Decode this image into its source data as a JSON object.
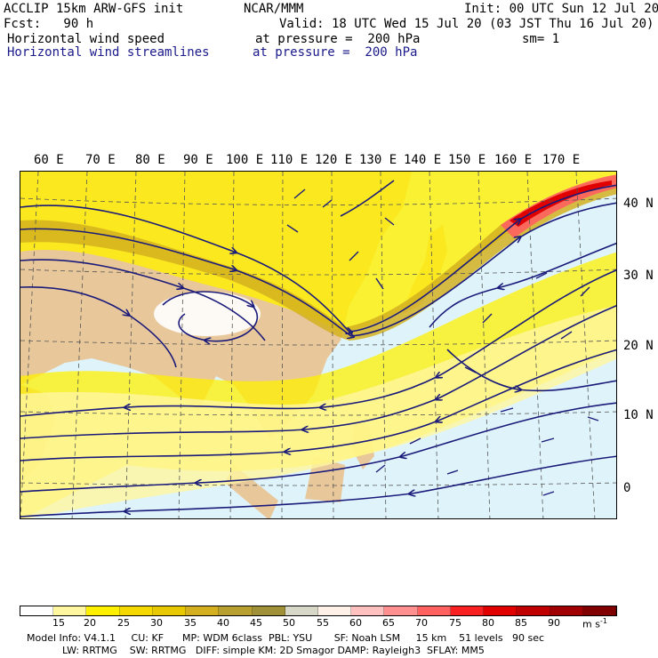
{
  "header": {
    "model": "ACCLIP 15km ARW-GFS init",
    "org": "NCAR/MMM",
    "init": "Init: 00 UTC Sun 12 Jul 20",
    "fcst": "Fcst:   90 h",
    "valid": "Valid: 18 UTC Wed 15 Jul 20 (03 JST Thu 16 Jul 20)",
    "field1": "Horizontal wind speed",
    "level1": "at pressure =  200 hPa",
    "sm": "sm= 1",
    "field2": "Horizontal wind streamlines",
    "level2": "at pressure =  200 hPa"
  },
  "map": {
    "lon_labels": [
      "60 E",
      "70 E",
      "80 E",
      "90 E",
      "100 E",
      "110 E",
      "120 E",
      "130 E",
      "140 E",
      "150 E",
      "160 E",
      "170 E"
    ],
    "lat_labels": [
      "40 N",
      "30 N",
      "20 N",
      "10 N",
      "0"
    ],
    "colors": {
      "ocean": "#dff4fa",
      "land": "#e8c79a",
      "streamline": "#1a1a7a",
      "gridline": "#555555"
    },
    "jet_core_max_ms": 70
  },
  "colorbar": {
    "labels": [
      "15",
      "20",
      "25",
      "30",
      "35",
      "40",
      "45",
      "50",
      "55",
      "60",
      "65",
      "70",
      "75",
      "80",
      "85",
      "90"
    ],
    "units": "m s",
    "units_exp": "-1",
    "colors": [
      "#ffffff",
      "#fff6a0",
      "#fff000",
      "#f5d800",
      "#e8c800",
      "#d4b020",
      "#b8a030",
      "#a09038",
      "#d8d8c8",
      "#fff0e8",
      "#ffc0c0",
      "#ff9090",
      "#ff6060",
      "#f82020",
      "#e00000",
      "#c00000",
      "#a00000",
      "#800000"
    ]
  },
  "footer": {
    "line1": "Model Info: V4.1.1     CU: KF      MP: WDM 6class  PBL: YSU       SF: Noah LSM     15 km    51 levels   90 sec",
    "line2": "LW: RRTMG    SW: RRTMG   DIFF: simple KM: 2D Smagor DAMP: Rayleigh3  SFLAY: MM5"
  }
}
